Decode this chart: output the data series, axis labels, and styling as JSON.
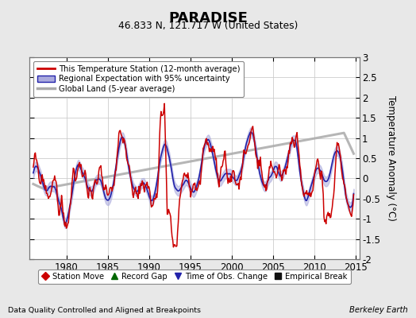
{
  "title": "PARADISE",
  "subtitle": "46.833 N, 121.717 W (United States)",
  "ylabel": "Temperature Anomaly (°C)",
  "xlabel_left": "Data Quality Controlled and Aligned at Breakpoints",
  "xlabel_right": "Berkeley Earth",
  "ylim": [
    -2.0,
    3.0
  ],
  "xlim": [
    1975.5,
    2015.5
  ],
  "xticks": [
    1980,
    1985,
    1990,
    1995,
    2000,
    2005,
    2010,
    2015
  ],
  "yticks": [
    -2.0,
    -1.5,
    -1.0,
    -0.5,
    0.0,
    0.5,
    1.0,
    1.5,
    2.0,
    2.5,
    3.0
  ],
  "bg_color": "#e8e8e8",
  "plot_bg_color": "#ffffff",
  "grid_color": "#cccccc",
  "red_line_color": "#cc0000",
  "blue_line_color": "#2222aa",
  "blue_fill_color": "#aaaadd",
  "gray_line_color": "#aaaaaa",
  "legend1_labels": [
    "This Temperature Station (12-month average)",
    "Regional Expectation with 95% uncertainty",
    "Global Land (5-year average)"
  ],
  "legend2_labels": [
    "Station Move",
    "Record Gap",
    "Time of Obs. Change",
    "Empirical Break"
  ],
  "legend2_markers": [
    "D",
    "^",
    "v",
    "s"
  ],
  "legend2_colors": [
    "#cc0000",
    "#006600",
    "#2222aa",
    "#111111"
  ]
}
